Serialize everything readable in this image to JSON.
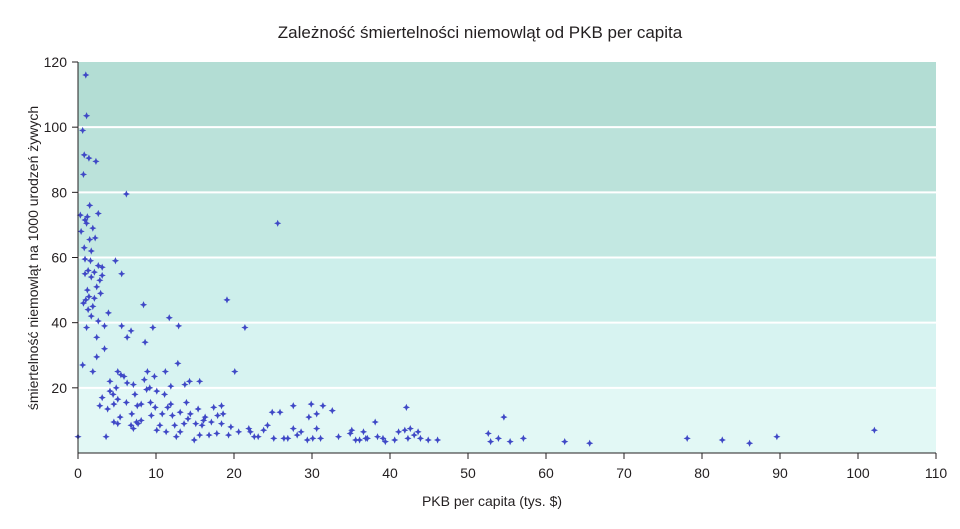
{
  "chart_data": {
    "type": "scatter",
    "title": "Zależność śmiertelności niemowląt od PKB per capita",
    "xlabel": "PKB per capita  (tys. $)",
    "ylabel": "śmiertelność niemowląt na 1000 urodzeń żywych",
    "xlim": [
      0,
      110
    ],
    "ylim": [
      0,
      120
    ],
    "xticks": [
      0,
      10,
      20,
      30,
      40,
      50,
      60,
      70,
      80,
      90,
      100,
      110
    ],
    "yticks": [
      20,
      40,
      60,
      80,
      100,
      120
    ],
    "grid": "horizontal",
    "band_colors": [
      "#e2f8f5",
      "#d7f3f1",
      "#cdefeb",
      "#c3e8e2",
      "#bbe2da",
      "#b3ddd4"
    ],
    "marker_color": "#3f48c6",
    "series": [
      {
        "points": [
          [
            0,
            5
          ],
          [
            1,
            116
          ],
          [
            1.1,
            103.5
          ],
          [
            0.6,
            99
          ],
          [
            0.8,
            91.5
          ],
          [
            1.4,
            90.5
          ],
          [
            2.3,
            89.5
          ],
          [
            0.7,
            85.5
          ],
          [
            6.2,
            79.5
          ],
          [
            1.5,
            76
          ],
          [
            0.3,
            73
          ],
          [
            1.2,
            72.5
          ],
          [
            2.6,
            73.5
          ],
          [
            0.9,
            71.5
          ],
          [
            1.1,
            70.5
          ],
          [
            1.9,
            69
          ],
          [
            0.4,
            68
          ],
          [
            1.5,
            65.5
          ],
          [
            2.2,
            66
          ],
          [
            0.8,
            63
          ],
          [
            1.7,
            62
          ],
          [
            0.9,
            59.5
          ],
          [
            1.6,
            59
          ],
          [
            4.8,
            59
          ],
          [
            2.6,
            57.5
          ],
          [
            3.1,
            57
          ],
          [
            1.3,
            56
          ],
          [
            2.1,
            55.5
          ],
          [
            5.6,
            55
          ],
          [
            0.9,
            55
          ],
          [
            1.7,
            54
          ],
          [
            2.8,
            53
          ],
          [
            3.1,
            54.5
          ],
          [
            2.4,
            51
          ],
          [
            1.2,
            50
          ],
          [
            2.9,
            49
          ],
          [
            1.4,
            48
          ],
          [
            2.1,
            47.5
          ],
          [
            1.0,
            47
          ],
          [
            0.7,
            46
          ],
          [
            1.9,
            45
          ],
          [
            8.4,
            45.5
          ],
          [
            1.3,
            44
          ],
          [
            3.9,
            43
          ],
          [
            19.1,
            47
          ],
          [
            11.7,
            41.5
          ],
          [
            1.7,
            42
          ],
          [
            2.6,
            40.5
          ],
          [
            1.1,
            38.5
          ],
          [
            3.4,
            39
          ],
          [
            5.6,
            39
          ],
          [
            9.6,
            38.5
          ],
          [
            12.9,
            39
          ],
          [
            21.4,
            38.5
          ],
          [
            6.8,
            37.5
          ],
          [
            2.4,
            35.5
          ],
          [
            6.3,
            35.5
          ],
          [
            8.6,
            34
          ],
          [
            3.4,
            32
          ],
          [
            2.4,
            29.5
          ],
          [
            0.6,
            27
          ],
          [
            12.8,
            27.5
          ],
          [
            1.9,
            25
          ],
          [
            5.1,
            25
          ],
          [
            5.5,
            24
          ],
          [
            8.9,
            25
          ],
          [
            11.2,
            25
          ],
          [
            5.9,
            23.5
          ],
          [
            9.8,
            23.5
          ],
          [
            13.7,
            21
          ],
          [
            20.1,
            25
          ],
          [
            4.1,
            19
          ],
          [
            4.9,
            20
          ],
          [
            6.3,
            21.5
          ],
          [
            7.1,
            21
          ],
          [
            8.5,
            22.5
          ],
          [
            10.1,
            19
          ],
          [
            11.9,
            20.5
          ],
          [
            14.3,
            22
          ],
          [
            15.6,
            22
          ],
          [
            7.3,
            18
          ],
          [
            8.8,
            19.5
          ],
          [
            9.2,
            20
          ],
          [
            11.1,
            18
          ],
          [
            3.1,
            17
          ],
          [
            4.5,
            18
          ],
          [
            5.1,
            16.5
          ],
          [
            6.2,
            15.5
          ],
          [
            4.6,
            15
          ],
          [
            8.1,
            15
          ],
          [
            2.8,
            14.5
          ],
          [
            7.6,
            14.5
          ],
          [
            3.8,
            13.5
          ],
          [
            9.9,
            14
          ],
          [
            11.5,
            14
          ],
          [
            13.9,
            15.5
          ],
          [
            15.4,
            13.5
          ],
          [
            17.4,
            14
          ],
          [
            18.4,
            14.5
          ],
          [
            27.6,
            14.5
          ],
          [
            29.9,
            15
          ],
          [
            31.4,
            14.5
          ],
          [
            32.6,
            13
          ],
          [
            54.6,
            11
          ],
          [
            42.1,
            14
          ],
          [
            5.4,
            11
          ],
          [
            6.9,
            12
          ],
          [
            9.4,
            11.5
          ],
          [
            10.8,
            12
          ],
          [
            12.1,
            11.5
          ],
          [
            13.1,
            12.5
          ],
          [
            14.4,
            12
          ],
          [
            16.3,
            11
          ],
          [
            18.6,
            12
          ],
          [
            24.9,
            12.5
          ],
          [
            25.9,
            12.5
          ],
          [
            29.6,
            11
          ],
          [
            30.6,
            12
          ],
          [
            38.1,
            9.5
          ],
          [
            4.6,
            9.5
          ],
          [
            5.1,
            9
          ],
          [
            6.8,
            8.5
          ],
          [
            7.7,
            9
          ],
          [
            8.1,
            10
          ],
          [
            10.5,
            8.5
          ],
          [
            12.4,
            8.5
          ],
          [
            13.6,
            9
          ],
          [
            15.1,
            9
          ],
          [
            16.1,
            10
          ],
          [
            17.1,
            9.5
          ],
          [
            18.4,
            9
          ],
          [
            19.6,
            8
          ],
          [
            20.6,
            6.5
          ],
          [
            22.1,
            6.5
          ],
          [
            23.8,
            7
          ],
          [
            24.3,
            8.5
          ],
          [
            27.6,
            7.5
          ],
          [
            28.6,
            6.5
          ],
          [
            30.6,
            7.5
          ],
          [
            35.1,
            7
          ],
          [
            36.6,
            6.5
          ],
          [
            41.1,
            6.5
          ],
          [
            41.9,
            7
          ],
          [
            42.6,
            7.5
          ],
          [
            43.1,
            5.5
          ],
          [
            43.6,
            6.5
          ],
          [
            52.6,
            6
          ],
          [
            13.1,
            6.5
          ],
          [
            15.6,
            5.5
          ],
          [
            17.8,
            6
          ],
          [
            19.3,
            5.5
          ],
          [
            22.6,
            5
          ],
          [
            23.1,
            5
          ],
          [
            25.1,
            4.5
          ],
          [
            26.9,
            4.5
          ],
          [
            28.1,
            5.5
          ],
          [
            29.4,
            4
          ],
          [
            30.1,
            4.5
          ],
          [
            31.1,
            4.5
          ],
          [
            33.4,
            5
          ],
          [
            35.6,
            4
          ],
          [
            36.1,
            4
          ],
          [
            37.1,
            4.5
          ],
          [
            38.4,
            5
          ],
          [
            39.4,
            3.5
          ],
          [
            40.6,
            4
          ],
          [
            42.3,
            4.5
          ],
          [
            43.9,
            4.5
          ],
          [
            44.9,
            4
          ],
          [
            52.9,
            3.5
          ],
          [
            55.4,
            3.5
          ],
          [
            57.1,
            4.5
          ],
          [
            62.4,
            3.5
          ],
          [
            65.6,
            3
          ],
          [
            78.1,
            4.5
          ],
          [
            82.6,
            4
          ],
          [
            86.1,
            3
          ],
          [
            89.6,
            5
          ],
          [
            102.1,
            7
          ],
          [
            7.1,
            7.5
          ],
          [
            7.5,
            9.5
          ],
          [
            10.1,
            7
          ],
          [
            11.3,
            6.5
          ],
          [
            12.6,
            5
          ],
          [
            14.9,
            4
          ],
          [
            16.8,
            5.5
          ],
          [
            21.9,
            7.5
          ],
          [
            26.4,
            4.5
          ],
          [
            34.9,
            6
          ],
          [
            36.9,
            4.5
          ],
          [
            39.1,
            4.5
          ],
          [
            46.1,
            4
          ],
          [
            53.9,
            4.5
          ],
          [
            3.6,
            5
          ],
          [
            4.1,
            22
          ],
          [
            9.3,
            15.5
          ],
          [
            11.9,
            15
          ],
          [
            14.1,
            10.5
          ],
          [
            15.9,
            8.5
          ],
          [
            17.9,
            11.5
          ],
          [
            25.6,
            70.5
          ]
        ]
      }
    ]
  }
}
